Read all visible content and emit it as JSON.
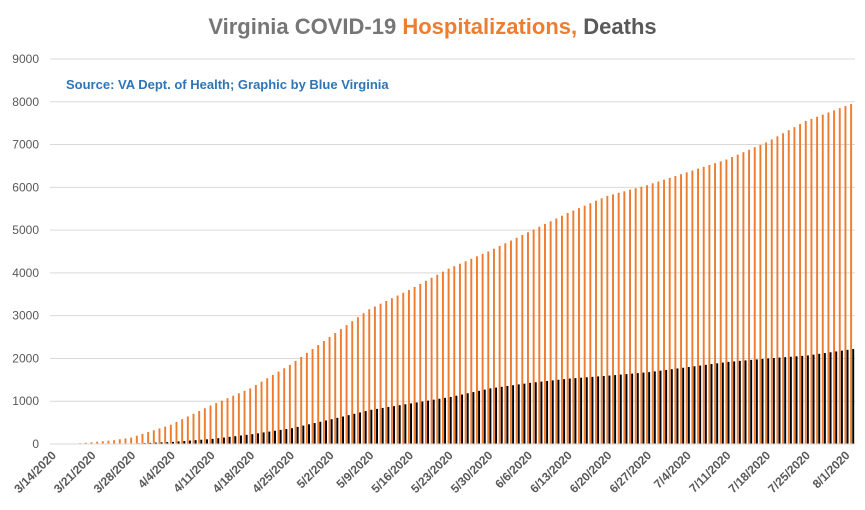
{
  "chart_data": {
    "type": "bar",
    "title_parts": [
      {
        "text": "Virginia COVID-19 ",
        "role": "plain"
      },
      {
        "text": "Hospitalizations,",
        "role": "hosp"
      },
      {
        "text": " Deaths",
        "role": "deaths"
      }
    ],
    "source_note": "Source: VA Dept. of Health; Graphic by Blue Virginia",
    "x_start_date": "3/14/2020",
    "x_end_date": "8/2/2020",
    "x_tick_labels": [
      "3/14/2020",
      "3/21/2020",
      "3/28/2020",
      "4/4/2020",
      "4/11/2020",
      "4/18/2020",
      "4/25/2020",
      "5/2/2020",
      "5/9/2020",
      "5/16/2020",
      "5/23/2020",
      "5/30/2020",
      "6/6/2020",
      "6/13/2020",
      "6/20/2020",
      "6/27/2020",
      "7/4/2020",
      "7/11/2020",
      "7/18/2020",
      "7/25/2020",
      "8/1/2020"
    ],
    "ylim": [
      0,
      9000
    ],
    "y_ticks": [
      0,
      1000,
      2000,
      3000,
      4000,
      5000,
      6000,
      7000,
      8000,
      9000
    ],
    "grid": true,
    "series": [
      {
        "name": "Hospitalizations",
        "color": "#ED7D31",
        "anchors": [
          [
            "3/14/2020",
            0
          ],
          [
            "3/18/2020",
            10
          ],
          [
            "3/21/2020",
            40
          ],
          [
            "3/25/2020",
            90
          ],
          [
            "3/28/2020",
            150
          ],
          [
            "4/4/2020",
            450
          ],
          [
            "4/11/2020",
            900
          ],
          [
            "4/18/2020",
            1300
          ],
          [
            "4/25/2020",
            1850
          ],
          [
            "5/2/2020",
            2500
          ],
          [
            "5/9/2020",
            3150
          ],
          [
            "5/16/2020",
            3600
          ],
          [
            "5/23/2020",
            4100
          ],
          [
            "5/30/2020",
            4500
          ],
          [
            "6/6/2020",
            4950
          ],
          [
            "6/13/2020",
            5400
          ],
          [
            "6/20/2020",
            5800
          ],
          [
            "6/27/2020",
            6050
          ],
          [
            "7/4/2020",
            6350
          ],
          [
            "7/11/2020",
            6650
          ],
          [
            "7/18/2020",
            7050
          ],
          [
            "7/25/2020",
            7550
          ],
          [
            "8/2/2020",
            7950
          ]
        ]
      },
      {
        "name": "Deaths",
        "color": "#000000",
        "anchors": [
          [
            "3/14/2020",
            0
          ],
          [
            "3/21/2020",
            2
          ],
          [
            "3/28/2020",
            10
          ],
          [
            "4/4/2020",
            50
          ],
          [
            "4/11/2020",
            120
          ],
          [
            "4/18/2020",
            230
          ],
          [
            "4/25/2020",
            370
          ],
          [
            "5/2/2020",
            580
          ],
          [
            "5/9/2020",
            800
          ],
          [
            "5/16/2020",
            950
          ],
          [
            "5/23/2020",
            1100
          ],
          [
            "5/30/2020",
            1300
          ],
          [
            "6/6/2020",
            1430
          ],
          [
            "6/13/2020",
            1530
          ],
          [
            "6/20/2020",
            1600
          ],
          [
            "6/27/2020",
            1680
          ],
          [
            "7/4/2020",
            1800
          ],
          [
            "7/11/2020",
            1920
          ],
          [
            "7/18/2020",
            2000
          ],
          [
            "7/25/2020",
            2070
          ],
          [
            "8/2/2020",
            2220
          ]
        ]
      }
    ]
  },
  "colors": {
    "gridline": "#D9D9D9",
    "axis_text": "#595959"
  }
}
